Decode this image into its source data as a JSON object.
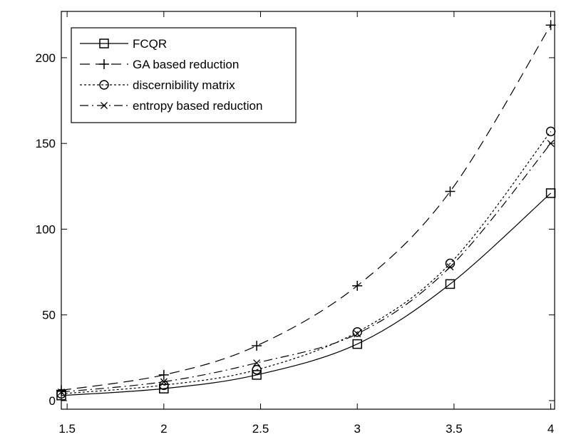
{
  "chart_data": {
    "type": "line",
    "title": "",
    "xlabel": "",
    "ylabel": "",
    "xlim": [
      1.47,
      4.02
    ],
    "ylim": [
      -5,
      227
    ],
    "x_ticks": [
      1.5,
      2,
      2.5,
      3,
      3.5,
      4
    ],
    "x_tick_labels": [
      "1.5",
      "2",
      "2.5",
      "3",
      "3.5",
      "4"
    ],
    "y_ticks": [
      0,
      50,
      100,
      150,
      200
    ],
    "y_tick_labels": [
      "0",
      "50",
      "100",
      "150",
      "200"
    ],
    "grid": false,
    "legend_position": "top-left",
    "series": [
      {
        "name": "FCQR",
        "marker": "square",
        "line_style": "solid",
        "x": [
          1.47,
          2.0,
          2.48,
          3.0,
          3.48,
          4.0
        ],
        "y": [
          3,
          7,
          15,
          33,
          68,
          121
        ]
      },
      {
        "name": "GA based reduction",
        "marker": "plus",
        "line_style": "dashed",
        "x": [
          1.47,
          2.0,
          2.48,
          3.0,
          3.48,
          4.0
        ],
        "y": [
          6,
          15,
          32,
          67,
          122,
          219
        ]
      },
      {
        "name": "discernibility matrix",
        "marker": "circle",
        "line_style": "dotted",
        "x": [
          1.47,
          2.0,
          2.48,
          3.0,
          3.48,
          4.0
        ],
        "y": [
          4,
          9,
          18,
          40,
          80,
          157
        ]
      },
      {
        "name": "entropy based reduction",
        "marker": "x",
        "line_style": "dashdot",
        "x": [
          1.47,
          2.0,
          2.48,
          3.0,
          3.48,
          4.0
        ],
        "y": [
          5,
          11,
          22,
          39,
          78,
          150
        ]
      }
    ]
  }
}
